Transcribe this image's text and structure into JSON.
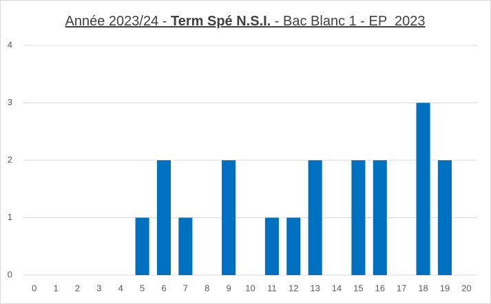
{
  "chart_data": {
    "type": "bar",
    "title_parts": [
      {
        "text": "Année 2023/24 - ",
        "bold": false
      },
      {
        "text": "Term Spé N.S.I.",
        "bold": true
      },
      {
        "text": " - Bac Blanc 1 - EP  2023",
        "bold": false
      }
    ],
    "categories": [
      "0",
      "1",
      "2",
      "3",
      "4",
      "5",
      "6",
      "7",
      "8",
      "9",
      "10",
      "11",
      "12",
      "13",
      "14",
      "15",
      "16",
      "17",
      "18",
      "19",
      "20"
    ],
    "values": [
      0,
      0,
      0,
      0,
      0,
      1,
      2,
      1,
      0,
      2,
      0,
      1,
      1,
      2,
      0,
      2,
      2,
      0,
      3,
      2,
      0
    ],
    "color": "#0070c0",
    "ylim": [
      0,
      4
    ],
    "yticks": [
      0,
      1,
      2,
      3,
      4
    ],
    "grid": true
  }
}
